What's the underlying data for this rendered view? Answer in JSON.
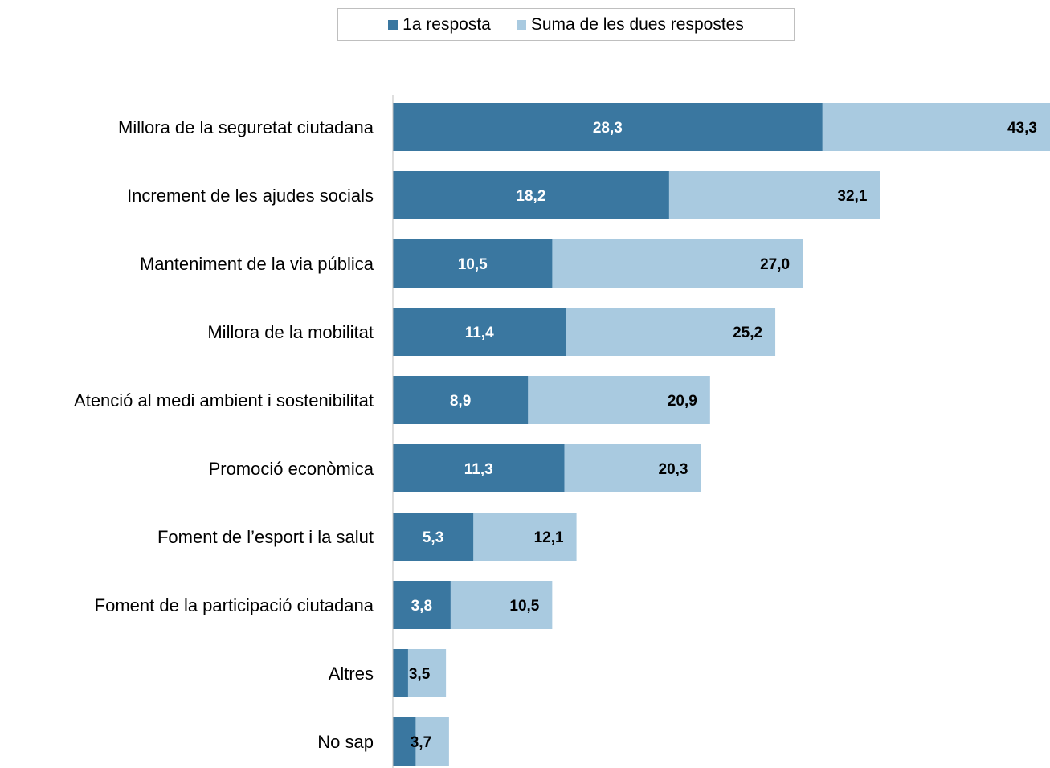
{
  "colors": {
    "first": "#3a77a0",
    "sum": "#a9cae0",
    "axis": "#bfbfbf"
  },
  "legend": {
    "first_label": "1a resposta",
    "sum_label": "Suma de les dues respostes"
  },
  "chart_data": {
    "type": "bar",
    "orientation": "horizontal",
    "categories": [
      "Millora de la seguretat ciutadana",
      "Increment de les ajudes socials",
      "Manteniment de la via pública",
      "Millora de la mobilitat",
      "Atenció al medi ambient i sostenibilitat",
      "Promoció econòmica",
      "Foment de l’esport i la salut",
      "Foment de la participació ciutadana",
      "Altres",
      "No sap"
    ],
    "series": [
      {
        "name": "1a resposta",
        "values": [
          28.3,
          18.2,
          10.5,
          11.4,
          8.9,
          11.3,
          5.3,
          3.8,
          1.0,
          1.5
        ],
        "labels": [
          "28,3",
          "18,2",
          "10,5",
          "11,4",
          "8,9",
          "11,3",
          "5,3",
          "3,8",
          "",
          ""
        ]
      },
      {
        "name": "Suma de les dues respostes",
        "values": [
          43.3,
          32.1,
          27.0,
          25.2,
          20.9,
          20.3,
          12.1,
          10.5,
          3.5,
          3.7
        ],
        "labels": [
          "43,3",
          "32,1",
          "27,0",
          "25,2",
          "20,9",
          "20,3",
          "12,1",
          "10,5",
          "3,5",
          "3,7"
        ]
      }
    ],
    "xlim": [
      0,
      43.3
    ],
    "grid": false,
    "legend_position": "top"
  }
}
